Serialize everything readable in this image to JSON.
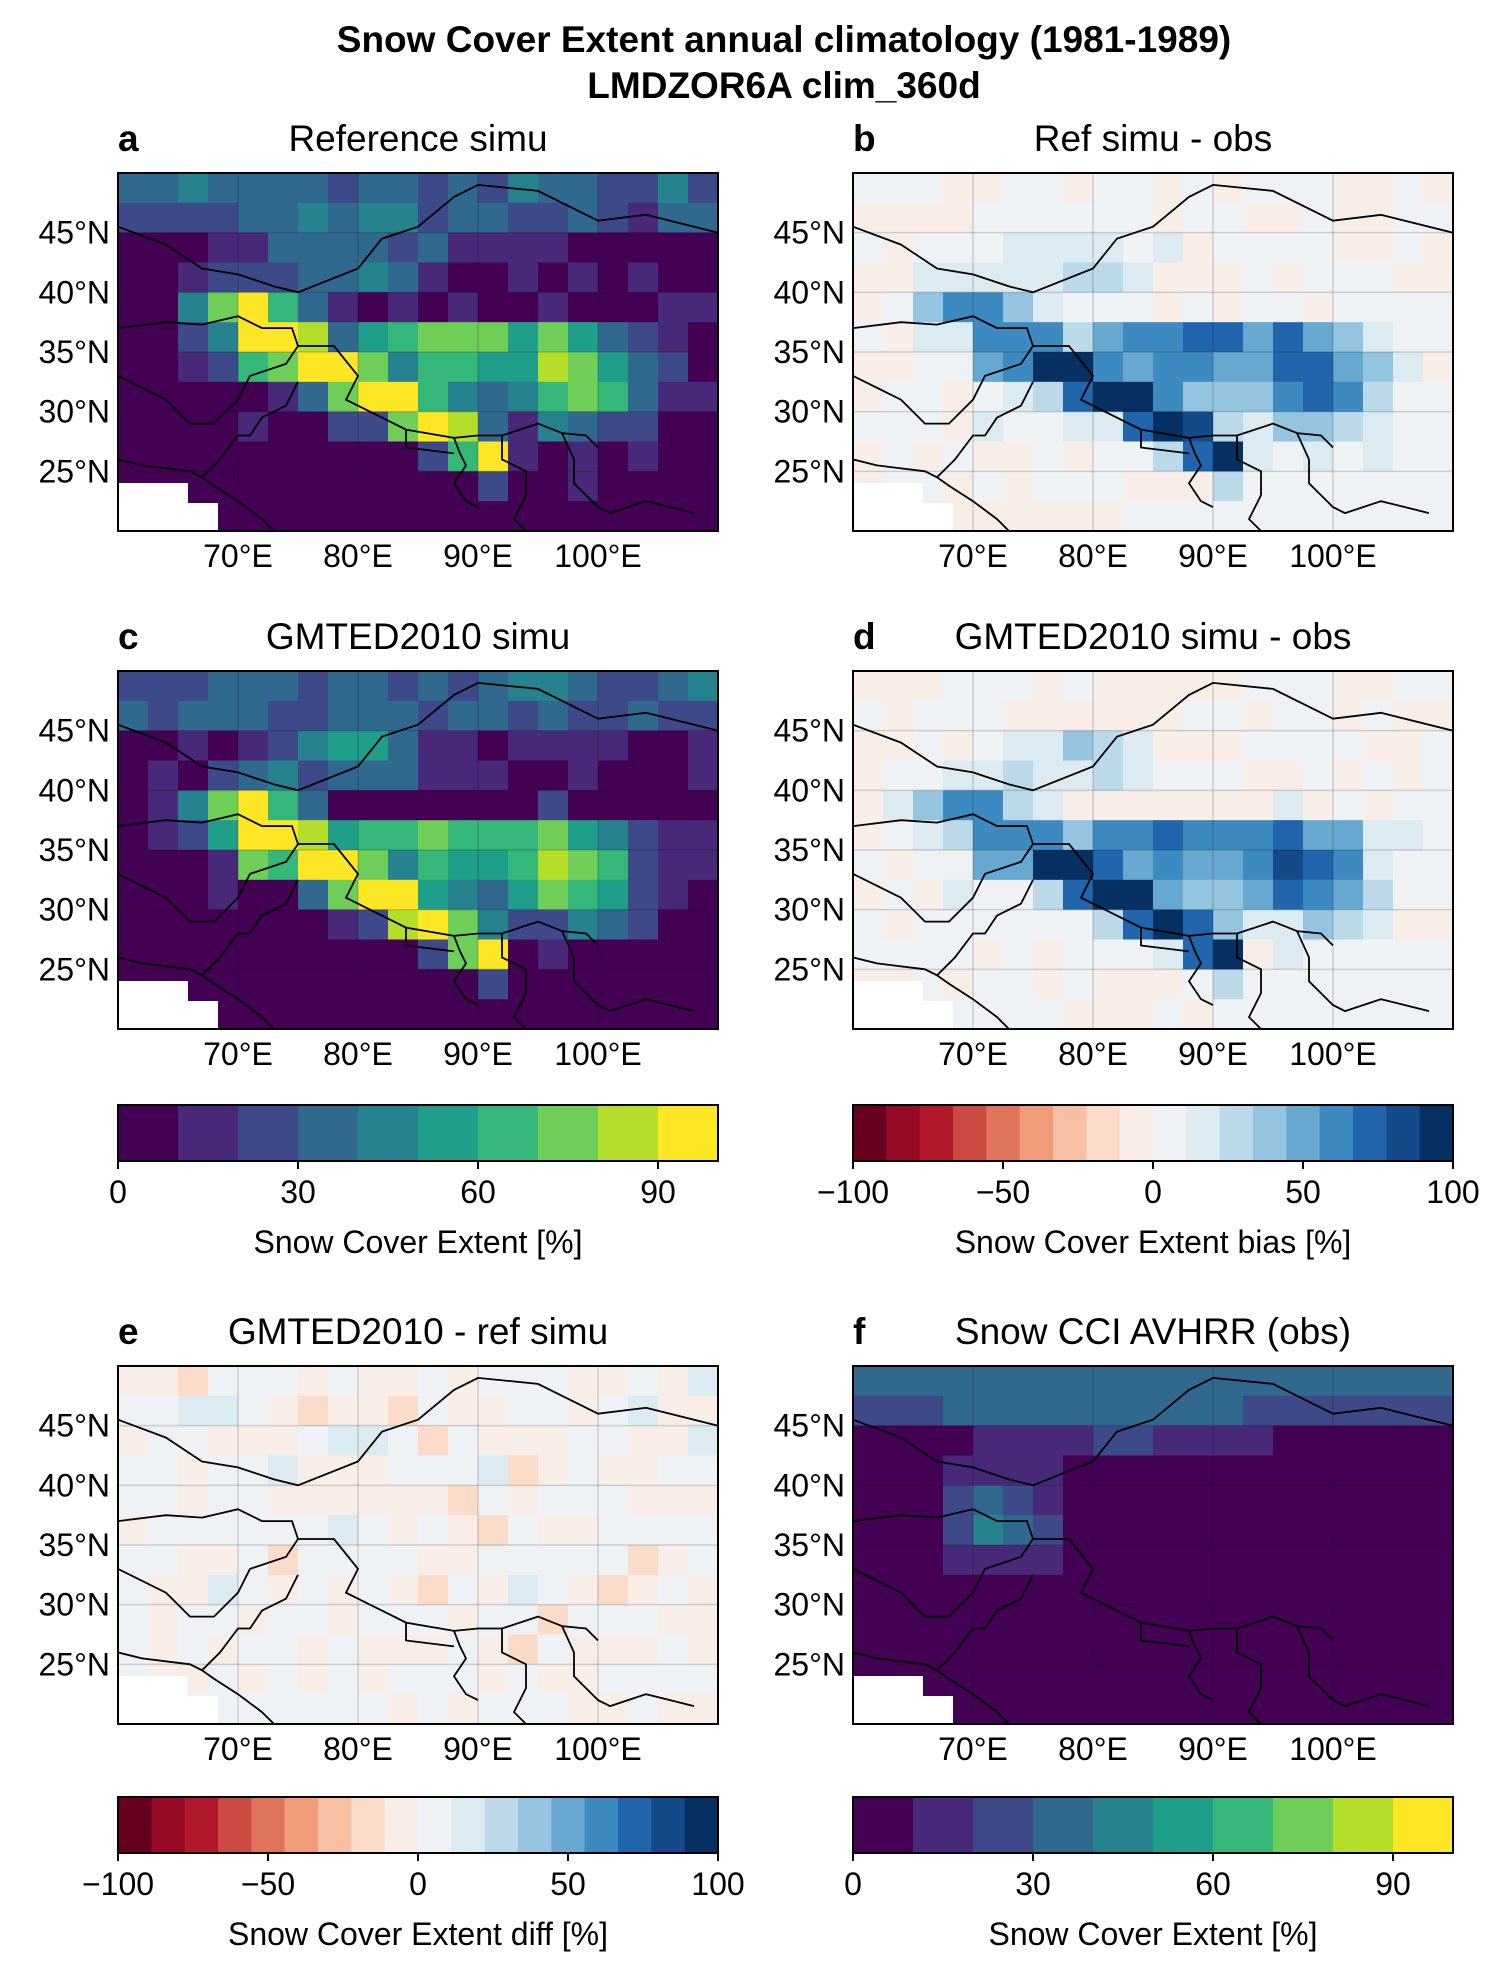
{
  "figure": {
    "title_line1": "Snow Cover Extent annual climatology (1981-1989)",
    "title_line2": "LMDZOR6A clim_360d"
  },
  "colors": {
    "viridis": [
      "#440154",
      "#482878",
      "#3e4989",
      "#31688e",
      "#26828e",
      "#1f9e89",
      "#35b779",
      "#6ece58",
      "#b5de2b",
      "#fde725"
    ],
    "rdbu": [
      "#67001f",
      "#960a26",
      "#b2182b",
      "#cb4a42",
      "#e0735c",
      "#f09c7b",
      "#f7c0a4",
      "#fbdcc8",
      "#f8ede7",
      "#eef2f5",
      "#dceaf2",
      "#bcd9ea",
      "#94c4df",
      "#66a8d0",
      "#3d8ac0",
      "#2166ac",
      "#154a8a",
      "#053061"
    ]
  },
  "chart_data": [
    {
      "id": "a",
      "label": "a",
      "title": "Reference simu",
      "type": "heatmap",
      "colormap": "viridis",
      "variable": "Snow Cover Extent [%]",
      "xlim": [
        60,
        110
      ],
      "ylim": [
        20,
        50
      ],
      "xticks": [
        "70°E",
        "80°E",
        "90°E",
        "100°E"
      ],
      "yticks": [
        "45°N",
        "40°N",
        "35°N",
        "30°N",
        "25°N"
      ]
    },
    {
      "id": "b",
      "label": "b",
      "title": "Ref simu - obs",
      "type": "heatmap",
      "colormap": "RdBu",
      "variable": "Snow Cover Extent bias [%]",
      "xlim": [
        60,
        110
      ],
      "ylim": [
        20,
        50
      ],
      "xticks": [
        "70°E",
        "80°E",
        "90°E",
        "100°E"
      ],
      "yticks": [
        "45°N",
        "40°N",
        "35°N",
        "30°N",
        "25°N"
      ]
    },
    {
      "id": "c",
      "label": "c",
      "title": "GMTED2010 simu",
      "type": "heatmap",
      "colormap": "viridis",
      "variable": "Snow Cover Extent [%]",
      "xlim": [
        60,
        110
      ],
      "ylim": [
        20,
        50
      ],
      "xticks": [
        "70°E",
        "80°E",
        "90°E",
        "100°E"
      ],
      "yticks": [
        "45°N",
        "40°N",
        "35°N",
        "30°N",
        "25°N"
      ]
    },
    {
      "id": "d",
      "label": "d",
      "title": "GMTED2010 simu - obs",
      "type": "heatmap",
      "colormap": "RdBu",
      "variable": "Snow Cover Extent bias [%]",
      "xlim": [
        60,
        110
      ],
      "ylim": [
        20,
        50
      ],
      "xticks": [
        "70°E",
        "80°E",
        "90°E",
        "100°E"
      ],
      "yticks": [
        "45°N",
        "40°N",
        "35°N",
        "30°N",
        "25°N"
      ]
    },
    {
      "id": "e",
      "label": "e",
      "title": "GMTED2010 - ref simu",
      "type": "heatmap",
      "colormap": "RdBu",
      "variable": "Snow Cover Extent diff [%]",
      "xlim": [
        60,
        110
      ],
      "ylim": [
        20,
        50
      ],
      "xticks": [
        "70°E",
        "80°E",
        "90°E",
        "100°E"
      ],
      "yticks": [
        "45°N",
        "40°N",
        "35°N",
        "30°N",
        "25°N"
      ]
    },
    {
      "id": "f",
      "label": "f",
      "title": "Snow CCI AVHRR (obs)",
      "type": "heatmap",
      "colormap": "viridis",
      "variable": "Snow Cover Extent [%]",
      "xlim": [
        60,
        110
      ],
      "ylim": [
        20,
        50
      ],
      "xticks": [
        "70°E",
        "80°E",
        "90°E",
        "100°E"
      ],
      "yticks": [
        "45°N",
        "40°N",
        "35°N",
        "30°N",
        "25°N"
      ]
    }
  ],
  "colorbars": [
    {
      "label": "Snow Cover Extent [%]",
      "colormap": "viridis",
      "range": [
        0,
        100
      ],
      "ticks": [
        {
          "value": 0,
          "text": "0"
        },
        {
          "value": 30,
          "text": "30"
        },
        {
          "value": 60,
          "text": "60"
        },
        {
          "value": 90,
          "text": "90"
        }
      ]
    },
    {
      "label": "Snow Cover Extent bias [%]",
      "colormap": "RdBu",
      "range": [
        -100,
        100
      ],
      "ticks": [
        {
          "value": -100,
          "text": "−100"
        },
        {
          "value": -50,
          "text": "−50"
        },
        {
          "value": 0,
          "text": "0"
        },
        {
          "value": 50,
          "text": "50"
        },
        {
          "value": 100,
          "text": "100"
        }
      ]
    },
    {
      "label": "Snow Cover Extent diff [%]",
      "colormap": "RdBu",
      "range": [
        -100,
        100
      ],
      "ticks": [
        {
          "value": -100,
          "text": "−100"
        },
        {
          "value": -50,
          "text": "−50"
        },
        {
          "value": 0,
          "text": "0"
        },
        {
          "value": 50,
          "text": "50"
        },
        {
          "value": 100,
          "text": "100"
        }
      ]
    },
    {
      "label": "Snow Cover Extent [%]",
      "colormap": "viridis",
      "range": [
        0,
        100
      ],
      "ticks": [
        {
          "value": 0,
          "text": "0"
        },
        {
          "value": 30,
          "text": "30"
        },
        {
          "value": 60,
          "text": "60"
        },
        {
          "value": 90,
          "text": "90"
        }
      ]
    }
  ]
}
